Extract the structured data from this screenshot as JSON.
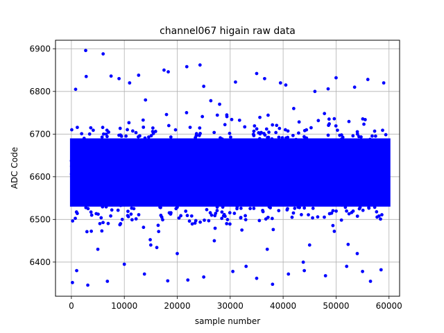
{
  "chart_data": {
    "type": "scatter",
    "title": "channel067 higain raw data",
    "xlabel": "sample number",
    "ylabel": "ADC Code",
    "xlim": [
      -3000,
      62000
    ],
    "ylim": [
      6320,
      6920
    ],
    "x_ticks": [
      0,
      10000,
      20000,
      30000,
      40000,
      50000,
      60000
    ],
    "y_ticks": [
      6400,
      6500,
      6600,
      6700,
      6800,
      6900
    ],
    "grid": true,
    "marker_color": "#0000ff",
    "n_samples": 60000,
    "core_band": {
      "y_min": 6530,
      "y_max": 6690,
      "x_min": 0,
      "x_max": 60000
    },
    "series": [
      {
        "values": [
          [
            2700,
            6896
          ],
          [
            6000,
            6888
          ],
          [
            800,
            6805
          ],
          [
            2800,
            6835
          ],
          [
            7500,
            6836
          ],
          [
            9000,
            6830
          ],
          [
            11000,
            6820
          ],
          [
            12700,
            6838
          ],
          [
            17500,
            6850
          ],
          [
            18300,
            6846
          ],
          [
            21800,
            6858
          ],
          [
            24300,
            6862
          ],
          [
            25000,
            6812
          ],
          [
            31000,
            6822
          ],
          [
            35000,
            6842
          ],
          [
            36500,
            6830
          ],
          [
            39500,
            6820
          ],
          [
            40500,
            6815
          ],
          [
            46000,
            6800
          ],
          [
            48500,
            6806
          ],
          [
            50000,
            6832
          ],
          [
            53500,
            6810
          ],
          [
            56000,
            6828
          ],
          [
            59000,
            6820
          ],
          [
            200,
            6352
          ],
          [
            1000,
            6380
          ],
          [
            3100,
            6346
          ],
          [
            6800,
            6355
          ],
          [
            10000,
            6395
          ],
          [
            13800,
            6372
          ],
          [
            18200,
            6356
          ],
          [
            22000,
            6358
          ],
          [
            25000,
            6365
          ],
          [
            30500,
            6378
          ],
          [
            33000,
            6390
          ],
          [
            35000,
            6362
          ],
          [
            38000,
            6348
          ],
          [
            41000,
            6372
          ],
          [
            44000,
            6380
          ],
          [
            48000,
            6368
          ],
          [
            52000,
            6390
          ],
          [
            55000,
            6378
          ],
          [
            56500,
            6355
          ],
          [
            58500,
            6382
          ],
          [
            15000,
            6440
          ],
          [
            20000,
            6420
          ],
          [
            27000,
            6450
          ],
          [
            37000,
            6430
          ],
          [
            45000,
            6440
          ],
          [
            54000,
            6420
          ],
          [
            5000,
            6430
          ],
          [
            42000,
            6760
          ],
          [
            28000,
            6770
          ],
          [
            14000,
            6780
          ]
        ]
      }
    ]
  }
}
